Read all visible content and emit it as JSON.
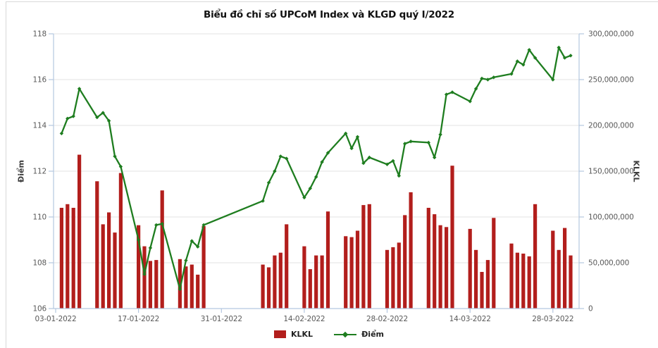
{
  "page": {
    "title": "Biểu đồ chỉ số UPCoM Index và KLGD quý I/2022"
  },
  "axes": {
    "left": {
      "title": "Điểm",
      "tick_values": [
        106,
        108,
        110,
        112,
        114,
        116,
        118
      ],
      "range": [
        106,
        118
      ]
    },
    "right": {
      "title": "KLKL",
      "tick_labels": [
        "0",
        "50,000,000",
        "100,000,000",
        "150,000,000",
        "200,000,000",
        "250,000,000",
        "300,000,000"
      ],
      "tick_values": [
        0,
        50000000,
        100000000,
        150000000,
        200000000,
        250000000,
        300000000
      ],
      "range": [
        0,
        300000000
      ]
    },
    "x": {
      "ticks": [
        {
          "label": "03-01-2022",
          "date": "2022-01-03"
        },
        {
          "label": "17-01-2022",
          "date": "2022-01-17"
        },
        {
          "label": "31-01-2022",
          "date": "2022-01-31"
        },
        {
          "label": "14-02-2022",
          "date": "2022-02-14"
        },
        {
          "label": "28-02-2022",
          "date": "2022-02-28"
        },
        {
          "label": "14-03-2022",
          "date": "2022-03-14"
        },
        {
          "label": "28-03-2022",
          "date": "2022-03-28"
        }
      ]
    }
  },
  "legend": {
    "bar": {
      "label": "KLKL"
    },
    "line": {
      "label": "Điểm"
    }
  },
  "colors": {
    "bar": "#b21e1c",
    "line": "#1e7d1f",
    "grid": "#e3e3e3",
    "axis_line": "#b4c7e0",
    "tick_text": "#595959",
    "page_border": "#d9d9d9"
  },
  "chart_data": {
    "type": "bar+line",
    "title": "Biểu đồ chỉ số UPCoM Index và KLGD quý I/2022",
    "x_axis_start": "2022-01-03",
    "x_tick_labels": [
      "03-01-2022",
      "17-01-2022",
      "31-01-2022",
      "14-02-2022",
      "28-02-2022",
      "14-03-2022",
      "28-03-2022"
    ],
    "ylim_left": [
      106,
      118
    ],
    "ylim_right": [
      0,
      300000000
    ],
    "grid": "horizontal",
    "legend_position": "bottom",
    "x_dates": [
      "2022-01-04",
      "2022-01-05",
      "2022-01-06",
      "2022-01-07",
      "2022-01-10",
      "2022-01-11",
      "2022-01-12",
      "2022-01-13",
      "2022-01-14",
      "2022-01-17",
      "2022-01-18",
      "2022-01-19",
      "2022-01-20",
      "2022-01-21",
      "2022-01-24",
      "2022-01-25",
      "2022-01-26",
      "2022-01-27",
      "2022-01-28",
      "2022-02-07",
      "2022-02-08",
      "2022-02-09",
      "2022-02-10",
      "2022-02-11",
      "2022-02-14",
      "2022-02-15",
      "2022-02-16",
      "2022-02-17",
      "2022-02-18",
      "2022-02-21",
      "2022-02-22",
      "2022-02-23",
      "2022-02-24",
      "2022-02-25",
      "2022-02-28",
      "2022-03-01",
      "2022-03-02",
      "2022-03-03",
      "2022-03-04",
      "2022-03-07",
      "2022-03-08",
      "2022-03-09",
      "2022-03-10",
      "2022-03-11",
      "2022-03-14",
      "2022-03-15",
      "2022-03-16",
      "2022-03-17",
      "2022-03-18",
      "2022-03-21",
      "2022-03-22",
      "2022-03-23",
      "2022-03-24",
      "2022-03-25",
      "2022-03-28",
      "2022-03-29",
      "2022-03-30",
      "2022-03-31"
    ],
    "series": [
      {
        "name": "KLKL",
        "type": "bar",
        "y_axis": "right",
        "values": [
          110000000,
          114000000,
          110000000,
          168000000,
          139000000,
          92000000,
          105000000,
          83000000,
          148000000,
          91000000,
          68000000,
          52000000,
          53000000,
          129000000,
          54000000,
          46000000,
          48000000,
          37000000,
          90000000,
          48000000,
          45000000,
          58000000,
          61000000,
          92000000,
          68000000,
          43000000,
          58000000,
          58000000,
          106000000,
          79000000,
          78000000,
          85000000,
          113000000,
          114000000,
          64000000,
          67000000,
          72000000,
          102000000,
          127000000,
          110000000,
          103000000,
          91000000,
          89000000,
          156000000,
          87000000,
          64000000,
          40000000,
          53000000,
          99000000,
          71000000,
          61000000,
          60000000,
          57000000,
          114000000,
          85000000,
          64000000,
          88000000,
          58000000
        ]
      },
      {
        "name": "Điểm",
        "type": "line",
        "y_axis": "left",
        "values": [
          113.65,
          114.3,
          114.4,
          115.6,
          114.35,
          114.55,
          114.2,
          112.65,
          112.2,
          109.0,
          107.5,
          108.65,
          109.65,
          109.7,
          106.85,
          108.1,
          108.95,
          108.7,
          109.65,
          110.7,
          111.5,
          112.0,
          112.65,
          112.55,
          110.85,
          111.25,
          111.75,
          112.4,
          112.8,
          113.65,
          113.0,
          113.5,
          112.35,
          112.6,
          112.3,
          112.45,
          111.8,
          113.2,
          113.3,
          113.25,
          112.6,
          113.6,
          115.35,
          115.45,
          115.05,
          115.6,
          116.05,
          116.0,
          116.1,
          116.25,
          116.8,
          116.65,
          117.3,
          116.95,
          116.0,
          117.4,
          116.95,
          117.05
        ]
      }
    ]
  }
}
